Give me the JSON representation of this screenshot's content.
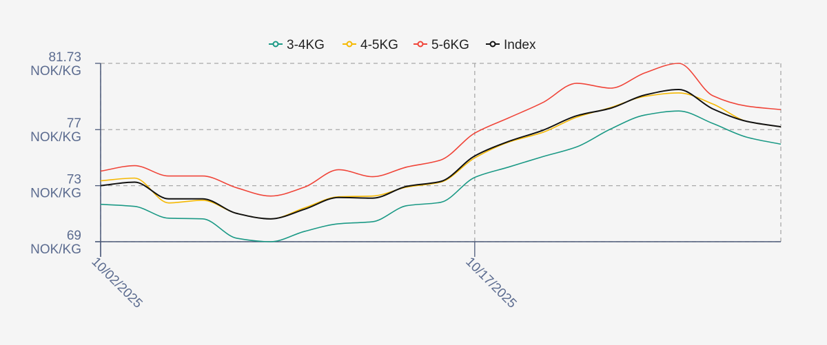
{
  "chart_data": {
    "type": "line",
    "title": "",
    "xlabel": "",
    "ylabel": "",
    "y_unit": "NOK/KG",
    "ylim": [
      69,
      81.73
    ],
    "yticks": [
      69,
      73,
      77,
      81.73
    ],
    "ytick_labels": [
      "69",
      "73",
      "77",
      "81.73"
    ],
    "xtick_labels": [
      "10/02/2025",
      "10/17/2025"
    ],
    "x": [
      "10/02/2025",
      "10/03/2025",
      "10/06/2025",
      "10/07/2025",
      "10/08/2025",
      "10/09/2025",
      "10/10/2025",
      "10/13/2025",
      "10/14/2025",
      "10/15/2025",
      "10/16/2025",
      "10/17/2025",
      "10/20/2025",
      "10/21/2025",
      "10/22/2025",
      "10/23/2025",
      "10/24/2025",
      "10/27/2025",
      "10/28/2025",
      "10/29/2025",
      "10/30/2025"
    ],
    "grid": "dashed",
    "legend_position": "top-center",
    "series": [
      {
        "name": "3-4KG",
        "color": "#1a9985",
        "values": [
          71.67,
          71.52,
          70.68,
          70.63,
          69.25,
          69.0,
          69.74,
          70.28,
          70.43,
          71.57,
          71.81,
          73.59,
          74.33,
          75.07,
          75.77,
          77.05,
          78.04,
          78.33,
          77.44,
          76.46,
          75.96
        ]
      },
      {
        "name": "4-5KG",
        "color": "#f5b800",
        "values": [
          73.35,
          73.54,
          71.77,
          71.96,
          71.02,
          70.63,
          71.42,
          72.21,
          72.26,
          72.9,
          73.25,
          74.98,
          76.11,
          76.8,
          77.89,
          78.58,
          79.37,
          79.62,
          78.83,
          77.59,
          77.2
        ]
      },
      {
        "name": "5-6KG",
        "color": "#f04438",
        "values": [
          74.04,
          74.43,
          73.69,
          73.69,
          72.85,
          72.26,
          72.9,
          74.14,
          73.64,
          74.33,
          74.83,
          76.75,
          77.84,
          78.93,
          80.31,
          79.96,
          81.05,
          81.73,
          79.42,
          78.68,
          78.43
        ]
      },
      {
        "name": "Index",
        "color": "#111111",
        "values": [
          73.0,
          73.25,
          72.06,
          72.06,
          71.02,
          70.63,
          71.32,
          72.16,
          72.11,
          72.95,
          73.3,
          75.12,
          76.16,
          76.95,
          77.99,
          78.53,
          79.47,
          79.86,
          78.48,
          77.59,
          77.2
        ]
      }
    ]
  }
}
